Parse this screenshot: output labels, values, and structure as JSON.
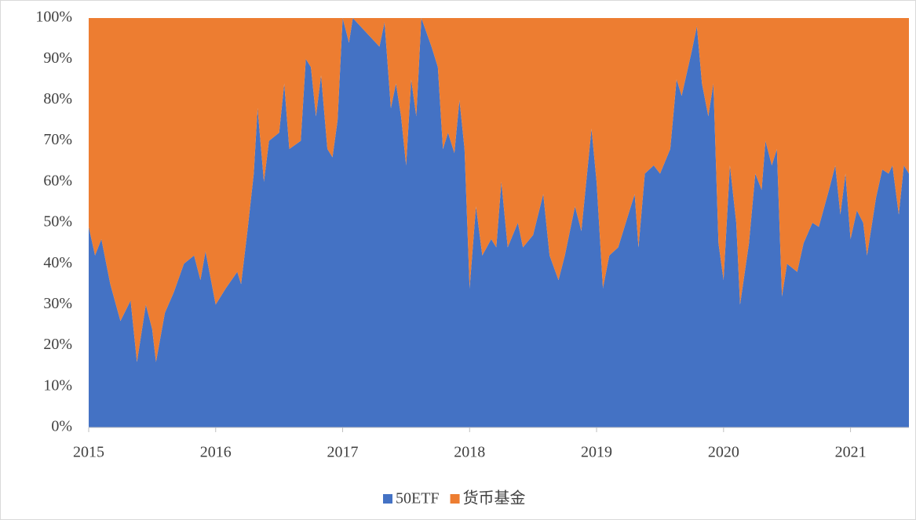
{
  "chart_data": {
    "type": "stacked-area",
    "x": [
      2015.0,
      2015.05,
      2015.1,
      2015.17,
      2015.25,
      2015.33,
      2015.38,
      2015.45,
      2015.5,
      2015.53,
      2015.6,
      2015.67,
      2015.75,
      2015.83,
      2015.88,
      2015.92,
      2016.0,
      2016.08,
      2016.17,
      2016.2,
      2016.25,
      2016.3,
      2016.33,
      2016.38,
      2016.42,
      2016.5,
      2016.54,
      2016.58,
      2016.67,
      2016.71,
      2016.75,
      2016.79,
      2016.83,
      2016.88,
      2016.92,
      2016.96,
      2017.0,
      2017.05,
      2017.08,
      2017.2,
      2017.29,
      2017.33,
      2017.38,
      2017.42,
      2017.46,
      2017.5,
      2017.54,
      2017.58,
      2017.62,
      2017.7,
      2017.75,
      2017.79,
      2017.83,
      2017.88,
      2017.92,
      2017.96,
      2018.0,
      2018.05,
      2018.1,
      2018.17,
      2018.21,
      2018.25,
      2018.3,
      2018.38,
      2018.42,
      2018.5,
      2018.58,
      2018.63,
      2018.7,
      2018.75,
      2018.83,
      2018.88,
      2018.96,
      2019.0,
      2019.05,
      2019.1,
      2019.17,
      2019.25,
      2019.3,
      2019.33,
      2019.38,
      2019.45,
      2019.5,
      2019.58,
      2019.63,
      2019.67,
      2019.75,
      2019.79,
      2019.83,
      2019.88,
      2019.92,
      2019.96,
      2020.0,
      2020.05,
      2020.1,
      2020.13,
      2020.2,
      2020.25,
      2020.3,
      2020.33,
      2020.38,
      2020.42,
      2020.46,
      2020.5,
      2020.58,
      2020.63,
      2020.7,
      2020.75,
      2020.83,
      2020.88,
      2020.92,
      2020.96,
      2021.0,
      2021.05,
      2021.1,
      2021.13,
      2021.2,
      2021.25,
      2021.3,
      2021.33,
      2021.38,
      2021.42,
      2021.46
    ],
    "series": [
      {
        "name": "50ETF",
        "color": "#4472c4",
        "values": [
          49,
          42,
          46,
          35,
          26,
          31,
          16,
          30,
          24,
          16,
          28,
          33,
          40,
          42,
          36,
          43,
          30,
          34,
          38,
          35,
          48,
          62,
          78,
          60,
          70,
          72,
          84,
          68,
          70,
          90,
          88,
          76,
          86,
          68,
          66,
          75,
          100,
          94,
          100,
          96,
          93,
          99,
          78,
          84,
          76,
          64,
          85,
          76,
          100,
          93,
          88,
          68,
          72,
          67,
          80,
          68,
          34,
          54,
          42,
          46,
          44,
          60,
          44,
          50,
          44,
          47,
          57,
          42,
          36,
          42,
          54,
          48,
          73,
          60,
          34,
          42,
          44,
          52,
          57,
          44,
          62,
          64,
          62,
          68,
          85,
          81,
          92,
          98,
          84,
          76,
          84,
          45,
          36,
          64,
          50,
          30,
          45,
          62,
          58,
          70,
          64,
          68,
          32,
          40,
          38,
          45,
          50,
          49,
          58,
          64,
          52,
          62,
          46,
          53,
          50,
          42,
          56,
          63,
          62,
          64,
          52,
          64,
          62
        ]
      },
      {
        "name": "货币基金",
        "color": "#ed7d31",
        "values": [
          51,
          58,
          54,
          65,
          74,
          69,
          84,
          70,
          76,
          84,
          72,
          67,
          60,
          58,
          64,
          57,
          70,
          66,
          62,
          65,
          52,
          38,
          22,
          40,
          30,
          28,
          16,
          32,
          30,
          10,
          12,
          24,
          14,
          32,
          34,
          25,
          0,
          6,
          0,
          4,
          7,
          1,
          22,
          16,
          24,
          36,
          15,
          24,
          0,
          7,
          12,
          32,
          28,
          33,
          20,
          32,
          66,
          46,
          58,
          54,
          56,
          40,
          56,
          50,
          56,
          53,
          43,
          58,
          64,
          58,
          46,
          52,
          27,
          40,
          66,
          58,
          56,
          48,
          43,
          56,
          38,
          36,
          38,
          32,
          15,
          19,
          8,
          2,
          16,
          24,
          16,
          55,
          64,
          36,
          50,
          70,
          55,
          38,
          42,
          30,
          36,
          32,
          68,
          60,
          62,
          55,
          50,
          51,
          42,
          36,
          48,
          38,
          54,
          47,
          50,
          58,
          44,
          37,
          38,
          36,
          48,
          36,
          38
        ]
      }
    ],
    "xlim": [
      2015,
      2021.46
    ],
    "xticks": [
      2015,
      2016,
      2017,
      2018,
      2019,
      2020,
      2021
    ],
    "ylim": [
      0,
      100
    ],
    "yticks": [
      {
        "value": 0,
        "label": "0%"
      },
      {
        "value": 10,
        "label": "10%"
      },
      {
        "value": 20,
        "label": "20%"
      },
      {
        "value": 30,
        "label": "30%"
      },
      {
        "value": 40,
        "label": "40%"
      },
      {
        "value": 50,
        "label": "50%"
      },
      {
        "value": 60,
        "label": "60%"
      },
      {
        "value": 70,
        "label": "70%"
      },
      {
        "value": 80,
        "label": "80%"
      },
      {
        "value": 90,
        "label": "90%"
      },
      {
        "value": 100,
        "label": "100%"
      }
    ],
    "legend": "bottom"
  }
}
